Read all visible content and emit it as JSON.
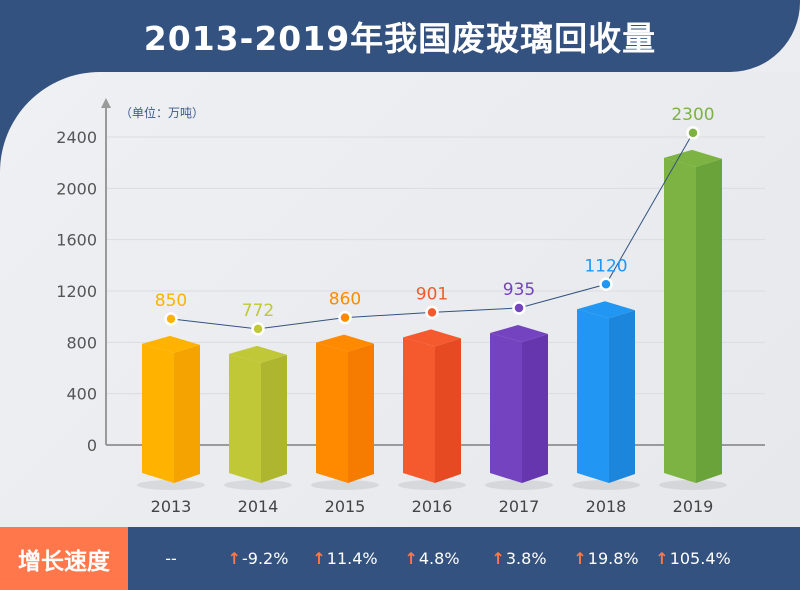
{
  "title": "2013-2019年我国废玻璃回收量",
  "chart_data": {
    "type": "bar",
    "unit_label": "（单位：万吨）",
    "categories": [
      "2013",
      "2014",
      "2015",
      "2016",
      "2017",
      "2018",
      "2019"
    ],
    "values": [
      850,
      772,
      860,
      901,
      935,
      1120,
      2300
    ],
    "data_labels": [
      "850",
      "772",
      "860",
      "901",
      "935",
      "1120",
      "2300"
    ],
    "ylim": [
      0,
      2400
    ],
    "yticks": [
      "0",
      "400",
      "800",
      "1200",
      "1600",
      "2000",
      "2400"
    ],
    "grid": true,
    "overlay_line": true,
    "colors": [
      "#FFB300",
      "#C0C838",
      "#FF8A00",
      "#F45A2E",
      "#7443BF",
      "#2196F3",
      "#7CB342"
    ],
    "side_colors": [
      "#F5A300",
      "#AEB52E",
      "#F57C00",
      "#E64A22",
      "#6536AD",
      "#1C86DD",
      "#6AA33A"
    ]
  },
  "footer": {
    "label": "增长速度",
    "arrow_color": "#FF774A",
    "rates": [
      {
        "text": "--",
        "arrow": false
      },
      {
        "text": "-9.2%",
        "arrow": true
      },
      {
        "text": "11.4%",
        "arrow": true
      },
      {
        "text": "4.8%",
        "arrow": true
      },
      {
        "text": "3.8%",
        "arrow": true
      },
      {
        "text": "19.8%",
        "arrow": true
      },
      {
        "text": "105.4%",
        "arrow": true
      }
    ]
  }
}
